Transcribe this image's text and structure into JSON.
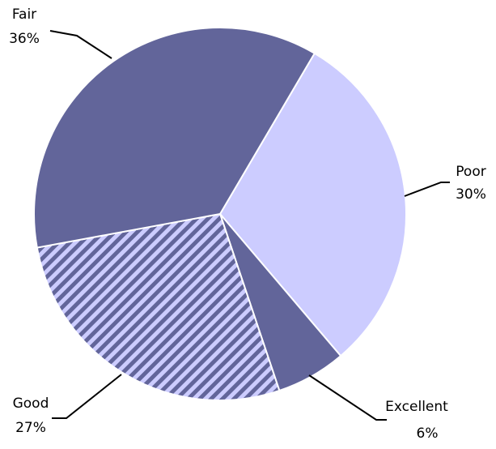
{
  "chart_data": {
    "type": "pie",
    "categories": [
      "Poor",
      "Excellent",
      "Good",
      "Fair"
    ],
    "values": [
      30,
      6,
      27,
      36
    ],
    "value_labels": [
      "30%",
      "6%",
      "27%",
      "36%"
    ],
    "colors": [
      "#ccccff",
      "#62659a",
      "#62659a",
      "#62659a"
    ],
    "hatched": [
      false,
      false,
      true,
      false
    ]
  }
}
